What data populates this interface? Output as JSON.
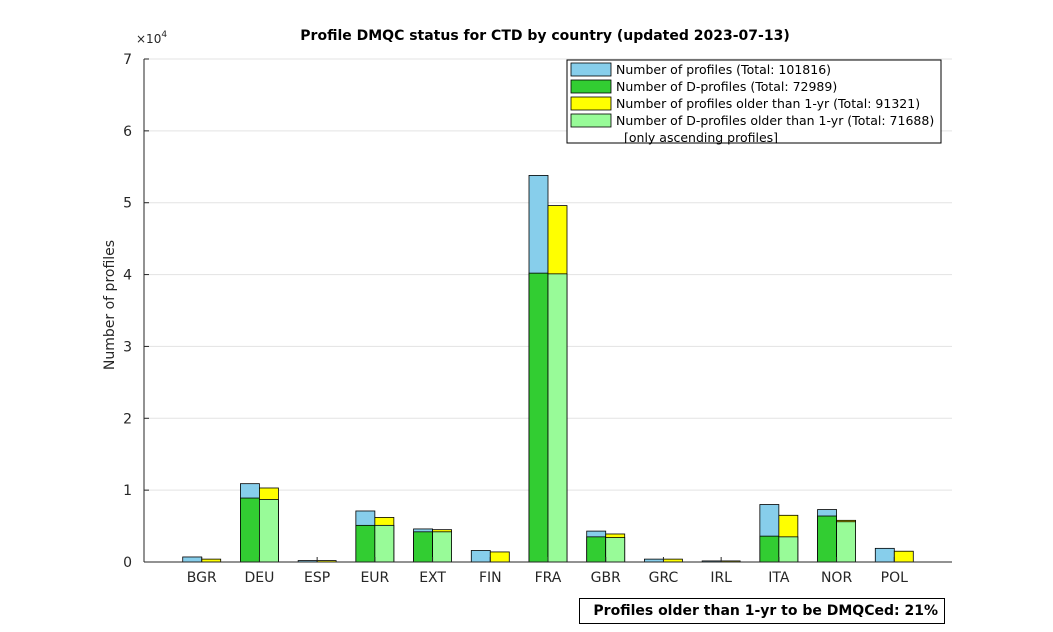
{
  "chart_data": {
    "type": "bar",
    "title": "Profile DMQC status for CTD by country (updated 2023-07-13)",
    "ylabel": "Number of profiles",
    "xlabel": "",
    "y_multiplier_label": "×10",
    "y_multiplier_exponent": "4",
    "ylim": [
      0,
      70000
    ],
    "yticks": [
      0,
      10000,
      20000,
      30000,
      40000,
      50000,
      60000,
      70000
    ],
    "ytick_labels": [
      "0",
      "1",
      "2",
      "3",
      "4",
      "5",
      "6",
      "7"
    ],
    "grid": true,
    "legend_position": "top-right",
    "categories": [
      "BGR",
      "DEU",
      "ESP",
      "EUR",
      "EXT",
      "FIN",
      "FRA",
      "GBR",
      "GRC",
      "IRL",
      "ITA",
      "NOR",
      "POL"
    ],
    "series": [
      {
        "name": "Number of profiles (Total: 101816)",
        "color": "#87CEEB",
        "stack": "left",
        "values": [
          700,
          10900,
          200,
          7100,
          4600,
          1600,
          53800,
          4300,
          400,
          150,
          8000,
          7300,
          1900
        ]
      },
      {
        "name": "Number of D-profiles (Total: 72989)",
        "color": "#32CD32",
        "stack": "left",
        "values": [
          0,
          8900,
          0,
          5100,
          4200,
          0,
          40200,
          3500,
          0,
          0,
          3600,
          6400,
          0
        ]
      },
      {
        "name": "Number of profiles older than 1-yr (Total: 91321)",
        "color": "#FFFF00",
        "stack": "right",
        "values": [
          400,
          10300,
          200,
          6200,
          4500,
          1400,
          49600,
          3900,
          400,
          150,
          6500,
          5800,
          1500
        ]
      },
      {
        "name": "Number of D-profiles older than 1-yr (Total: 71688)",
        "color": "#98FB98",
        "stack": "right",
        "values": [
          0,
          8700,
          0,
          5100,
          4200,
          0,
          40100,
          3400,
          0,
          0,
          3500,
          5600,
          0
        ]
      }
    ],
    "legend_footnote": "[only ascending profiles]"
  },
  "annotation": "Profiles older than 1-yr to be DMQCed: 21%"
}
